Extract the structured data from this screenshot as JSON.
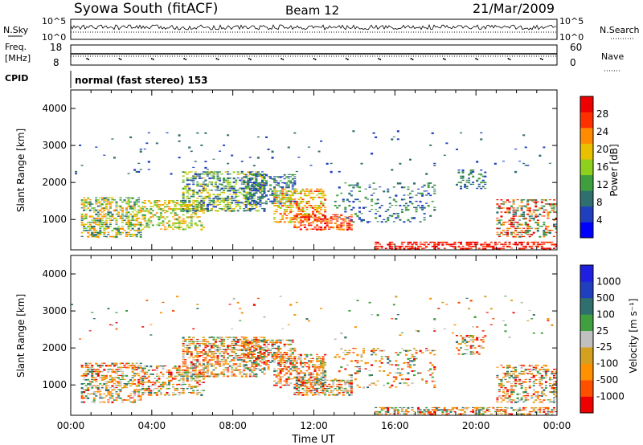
{
  "header": {
    "title": "Syowa South (fitACF)",
    "beam": "Beam 12",
    "date": "21/Mar/2009"
  },
  "labels": {
    "nsky": "N.Sky",
    "nsearch": "N.Search",
    "freq": "Freq.",
    "mhz": "[MHz]",
    "nave": "Nave",
    "cpid": "CPID",
    "cpid_value": "normal (fast stereo) 153",
    "nsky_top": "10^5",
    "nsky_bottom": "10^0",
    "freq_top": "18",
    "freq_bottom": "8",
    "nave_top": "60",
    "nave_bottom": "0"
  },
  "colors": {
    "power_scale": [
      "#0000ff",
      "#1f3fbf",
      "#2f6f6f",
      "#3f9f3f",
      "#8fd01f",
      "#e8c000",
      "#ff8c00",
      "#ff3000",
      "#ee0000"
    ],
    "velocity_scale": [
      "#1f1fdf",
      "#1f3fbf",
      "#2f6f6f",
      "#40a040",
      "#c0c0c0",
      "#d4a020",
      "#ff9000",
      "#ff5000",
      "#ee0000"
    ]
  },
  "chart_data": [
    {
      "type": "heatmap",
      "name": "power",
      "ylabel": "Slant Range [km]",
      "xlabel": "Time UT",
      "x_ticks": [
        "00:00",
        "04:00",
        "08:00",
        "12:00",
        "16:00",
        "20:00",
        "00:00"
      ],
      "y_ticks": [
        1000,
        2000,
        3000,
        4000
      ],
      "ylim": [
        180,
        4500
      ],
      "xlim_hours": [
        0,
        24
      ],
      "colorbar": {
        "label": "Power [dB]",
        "ticks": [
          4,
          8,
          12,
          16,
          20,
          24,
          28
        ],
        "range": [
          0,
          30
        ]
      }
    },
    {
      "type": "heatmap",
      "name": "velocity",
      "ylabel": "Slant Range [km]",
      "xlabel": "Time UT",
      "x_ticks": [
        "00:00",
        "04:00",
        "08:00",
        "12:00",
        "16:00",
        "20:00",
        "00:00"
      ],
      "y_ticks": [
        1000,
        2000,
        3000,
        4000
      ],
      "ylim": [
        180,
        4500
      ],
      "xlim_hours": [
        0,
        24
      ],
      "colorbar": {
        "label": "Velocity [m s⁻¹]",
        "ticks": [
          1000,
          500,
          100,
          25,
          -25,
          -100,
          -500,
          -1000
        ]
      }
    }
  ]
}
